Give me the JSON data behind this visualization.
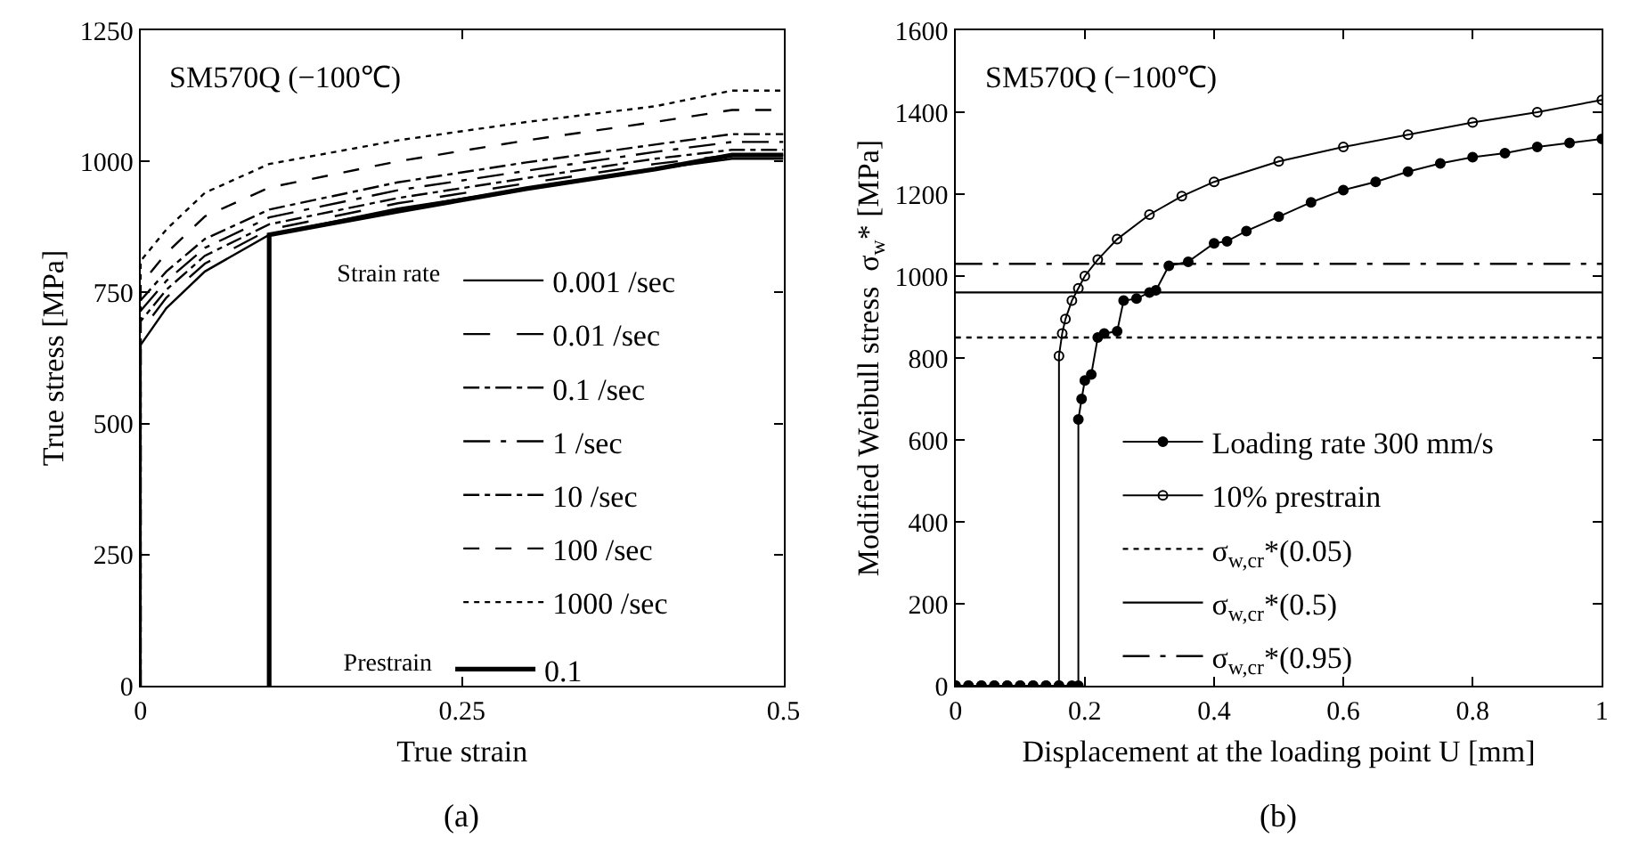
{
  "chart_data": [
    {
      "type": "line",
      "xlabel": "True strain",
      "ylabel": "True stress [MPa]",
      "legend_title": "Strain rate",
      "legend": "right",
      "grid": false,
      "marker": "none",
      "xlim": [
        0,
        0.5
      ],
      "xticks": [
        0,
        0.25,
        0.5
      ],
      "ylim": [
        0,
        1250
      ],
      "yticks": [
        0,
        250,
        500,
        750,
        1000,
        1250
      ],
      "annotations": [
        "SM570Q (−100℃)",
        "Prestrain",
        "(a)"
      ],
      "x": [
        0,
        0,
        0.02,
        0.05,
        0.1,
        0.2,
        0.3,
        0.4,
        0.46,
        0.5
      ],
      "series": [
        {
          "name": "0.001 /sec",
          "color": "#000000",
          "line_style": "solid",
          "values": [
            0,
            650,
            720,
            790,
            860,
            910,
            948,
            985,
            1005,
            1005
          ]
        },
        {
          "name": "0.01 /sec",
          "color": "#000000",
          "line_style": "longdash",
          "values": [
            0,
            675,
            740,
            805,
            870,
            920,
            958,
            995,
            1012,
            1012
          ]
        },
        {
          "name": "0.1 /sec",
          "color": "#000000",
          "line_style": "dashdot",
          "values": [
            0,
            695,
            755,
            820,
            880,
            930,
            968,
            1005,
            1022,
            1022
          ]
        },
        {
          "name": "1 /sec",
          "color": "#000000",
          "line_style": "longdashdot",
          "values": [
            0,
            715,
            772,
            835,
            893,
            945,
            982,
            1018,
            1037,
            1037
          ]
        },
        {
          "name": "10 /sec",
          "color": "#000000",
          "line_style": "dashdot",
          "values": [
            0,
            735,
            790,
            852,
            908,
            960,
            998,
            1032,
            1052,
            1052
          ]
        },
        {
          "name": "100 /sec",
          "color": "#000000",
          "line_style": "dashed",
          "values": [
            0,
            765,
            825,
            895,
            950,
            1000,
            1040,
            1075,
            1098,
            1098
          ]
        },
        {
          "name": "1000 /sec",
          "color": "#000000",
          "line_style": "dotted",
          "values": [
            0,
            810,
            870,
            940,
            995,
            1040,
            1075,
            1105,
            1135,
            1135
          ]
        },
        {
          "name": "0.1",
          "color": "#000000",
          "line_style": "solid",
          "x": [
            0.1,
            0.1,
            0.2,
            0.3,
            0.4,
            0.46,
            0.5
          ],
          "values": [
            0,
            860,
            905,
            948,
            985,
            1012,
            1012
          ]
        }
      ]
    },
    {
      "type": "line",
      "xlabel": "Displacement at the loading point U [mm]",
      "ylabel": "Modified Weibull stress  σ$_{w}$* [MPa]",
      "legend": "right",
      "grid": false,
      "marker": "circle",
      "xlim": [
        0,
        1
      ],
      "xticks": [
        0,
        0.2,
        0.4,
        0.6,
        0.8,
        1
      ],
      "ylim": [
        0,
        1600
      ],
      "yticks": [
        0,
        200,
        400,
        600,
        800,
        1000,
        1200,
        1400,
        1600
      ],
      "annotations": [
        "SM570Q (−100℃)",
        "(b)"
      ],
      "series": [
        {
          "name": "Loading rate 300 mm/s",
          "color": "#000000",
          "marker": "circle",
          "x": [
            0,
            0.02,
            0.04,
            0.06,
            0.08,
            0.1,
            0.12,
            0.14,
            0.16,
            0.18,
            0.19,
            0.19,
            0.195,
            0.2,
            0.21,
            0.22,
            0.23,
            0.25,
            0.26,
            0.28,
            0.3,
            0.31,
            0.33,
            0.36,
            0.4,
            0.42,
            0.45,
            0.5,
            0.55,
            0.6,
            0.65,
            0.7,
            0.75,
            0.8,
            0.85,
            0.9,
            0.95,
            1.0
          ],
          "values": [
            0,
            0,
            0,
            0,
            0,
            0,
            0,
            0,
            0,
            0,
            0,
            650,
            700,
            745,
            760,
            850,
            860,
            865,
            940,
            945,
            960,
            965,
            1025,
            1035,
            1080,
            1085,
            1110,
            1145,
            1180,
            1210,
            1230,
            1255,
            1275,
            1290,
            1300,
            1315,
            1325,
            1335
          ]
        },
        {
          "name": "10% prestrain",
          "color": "#000000",
          "marker": "circle-open",
          "x": [
            0,
            0.02,
            0.04,
            0.06,
            0.08,
            0.1,
            0.12,
            0.14,
            0.16,
            0.16,
            0.165,
            0.17,
            0.18,
            0.19,
            0.2,
            0.22,
            0.25,
            0.3,
            0.35,
            0.4,
            0.5,
            0.6,
            0.7,
            0.8,
            0.9,
            1.0
          ],
          "values": [
            0,
            0,
            0,
            0,
            0,
            0,
            0,
            0,
            0,
            805,
            860,
            895,
            940,
            970,
            1000,
            1040,
            1090,
            1150,
            1195,
            1230,
            1280,
            1315,
            1345,
            1375,
            1400,
            1430
          ]
        }
      ],
      "ref_lines": [
        {
          "axis": "y",
          "value": 850,
          "label": "σ$_{w,cr}$*(0.05)",
          "line_style": "dotted",
          "color": "#000000"
        },
        {
          "axis": "y",
          "value": 960,
          "label": "σ$_{w,cr}$*(0.5)",
          "line_style": "solid",
          "color": "#000000"
        },
        {
          "axis": "y",
          "value": 1030,
          "label": "σ$_{w,cr}$*(0.95)",
          "line_style": "longdashdot",
          "color": "#000000"
        }
      ]
    }
  ]
}
